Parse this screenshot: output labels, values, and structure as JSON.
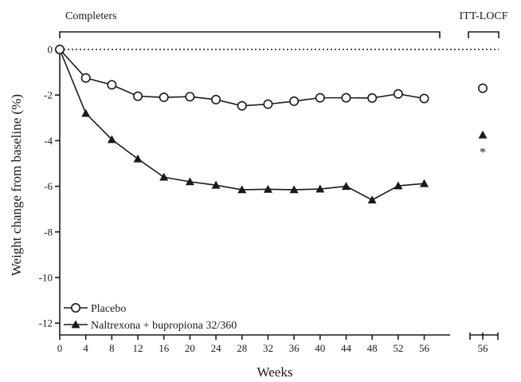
{
  "chart_data": {
    "type": "line",
    "xlabel": "Weeks",
    "ylabel": "Weight change from baseline (%)",
    "ylim": [
      -12.5,
      0
    ],
    "yticks": [
      0,
      -2,
      -4,
      -6,
      -8,
      -10,
      -12
    ],
    "yticks_text": [
      "0",
      "-2",
      "-4",
      "-6",
      "-8",
      "-10",
      "-12"
    ],
    "x": [
      0,
      4,
      8,
      12,
      16,
      20,
      24,
      28,
      32,
      36,
      40,
      44,
      48,
      52,
      56
    ],
    "x_text": [
      "0",
      "4",
      "8",
      "12",
      "16",
      "20",
      "24",
      "28",
      "32",
      "36",
      "40",
      "44",
      "48",
      "52",
      "56"
    ],
    "xlim": [
      0,
      62
    ],
    "grid": false,
    "reference_line": {
      "y": 0,
      "style": "dotted"
    },
    "legend_position": "bottom-left",
    "brackets": [
      {
        "label": "Completers",
        "from": 0,
        "to": 62
      },
      {
        "label": "ITT-LOCF"
      }
    ],
    "series": [
      {
        "name": "Placebo",
        "marker": "open-circle",
        "values": [
          0,
          -1.25,
          -1.55,
          -2.05,
          -2.1,
          -2.07,
          -2.2,
          -2.47,
          -2.4,
          -2.27,
          -2.12,
          -2.12,
          -2.13,
          -1.95,
          -2.15
        ]
      },
      {
        "name": "Naltrexona + bupropiona 32/360",
        "marker": "filled-triangle",
        "values": [
          0,
          -2.8,
          -3.95,
          -4.8,
          -5.6,
          -5.8,
          -5.95,
          -6.15,
          -6.13,
          -6.15,
          -6.12,
          -6.0,
          -6.6,
          -5.98,
          -5.88
        ]
      }
    ],
    "itt_locf": {
      "week_label": "56",
      "placebo": -1.7,
      "treatment": -3.75,
      "significance_marker": "*",
      "significance_y": -4.4
    }
  }
}
